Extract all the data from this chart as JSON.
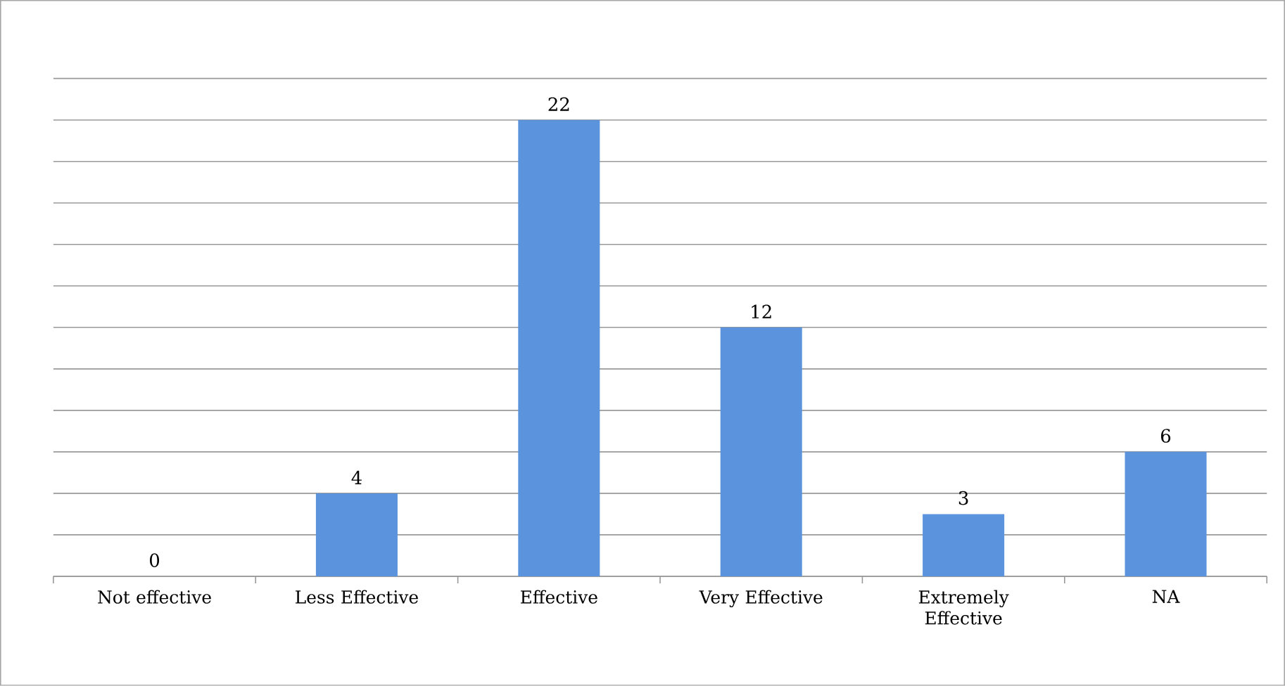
{
  "chart_data": {
    "type": "bar",
    "categories": [
      "Not effective",
      "Less Effective",
      "Effective",
      "Very Effective",
      "Extremely Effective",
      "NA"
    ],
    "values": [
      0,
      4,
      22,
      12,
      3,
      6
    ],
    "color": "#5b93dc",
    "tick_labels": "x",
    "grid": "y",
    "data_labels": true
  }
}
